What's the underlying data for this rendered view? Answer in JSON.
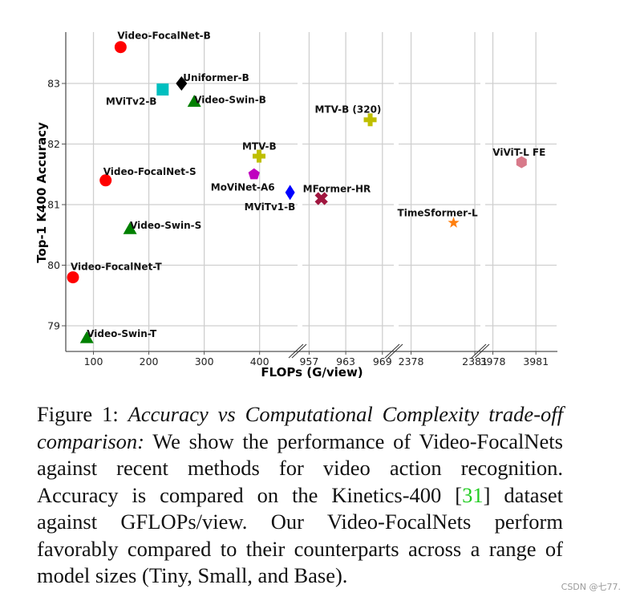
{
  "chart_data": {
    "type": "scatter",
    "title": "",
    "xlabel": "FLOPs (G/view)",
    "ylabel": "Top-1 K400 Accuracy",
    "ylim": [
      78.6,
      83.9
    ],
    "yticks": [
      79,
      80,
      81,
      82,
      83
    ],
    "grid": true,
    "broken_x_axis": true,
    "x_segments": [
      {
        "range": [
          50,
          470
        ],
        "ticks": [
          100,
          200,
          300,
          400
        ]
      },
      {
        "range": [
          955.5,
          971
        ],
        "ticks": [
          957,
          963,
          969
        ]
      },
      {
        "range": [
          2377.3,
          2381.3
        ],
        "ticks": [
          2378,
          2381
        ]
      },
      {
        "range": [
          3977.3,
          3982.5
        ],
        "ticks": [
          3978,
          3981
        ]
      }
    ],
    "points": [
      {
        "name": "Video-FocalNet-B",
        "x": 149,
        "y": 83.6,
        "marker": "circle",
        "color": "#ff0000"
      },
      {
        "name": "MViTv2-B",
        "x": 225,
        "y": 82.9,
        "marker": "square",
        "color": "#00bfbf"
      },
      {
        "name": "Uniformer-B",
        "x": 259,
        "y": 83.0,
        "marker": "diamond",
        "color": "#000000"
      },
      {
        "name": "Video-Swin-B",
        "x": 282,
        "y": 82.7,
        "marker": "triangle",
        "color": "#008000"
      },
      {
        "name": "MTV-B",
        "x": 399,
        "y": 81.8,
        "marker": "plus",
        "color": "#bfbf00"
      },
      {
        "name": "MoViNet-A6",
        "x": 390,
        "y": 81.5,
        "marker": "pentagon",
        "color": "#bf00bf"
      },
      {
        "name": "MViTv1-B",
        "x": 455,
        "y": 81.2,
        "marker": "thin_diamond",
        "color": "#0000ff"
      },
      {
        "name": "MFormer-HR",
        "x": 959,
        "y": 81.1,
        "marker": "x",
        "color": "#a0163f"
      },
      {
        "name": "MTV-B (320)",
        "x": 967,
        "y": 82.4,
        "marker": "plus",
        "color": "#bfbf00"
      },
      {
        "name": "TimeSformer-L",
        "x": 2380,
        "y": 80.7,
        "marker": "star",
        "color": "#ff7f0e"
      },
      {
        "name": "ViViT-L FE",
        "x": 3980,
        "y": 81.7,
        "marker": "hexagon",
        "color": "#d87a8a"
      },
      {
        "name": "Video-FocalNet-S",
        "x": 122,
        "y": 81.4,
        "marker": "circle",
        "color": "#ff0000"
      },
      {
        "name": "Video-Swin-S",
        "x": 166,
        "y": 80.6,
        "marker": "triangle",
        "color": "#008000"
      },
      {
        "name": "Video-FocalNet-T",
        "x": 63,
        "y": 79.8,
        "marker": "circle",
        "color": "#ff0000"
      },
      {
        "name": "Video-Swin-T",
        "x": 88,
        "y": 78.8,
        "marker": "triangle",
        "color": "#008000"
      }
    ]
  },
  "figure": {
    "x_axis_title": "FLOPs (G/view)",
    "y_axis_title": "Top-1 K400 Accuracy"
  },
  "caption": {
    "label": "Figure 1: ",
    "italic_title": "Accuracy vs Computational Complexity trade-off comparison:",
    "text_1": " We show the performance of Video-FocalNets against recent methods for video action recognition. Accuracy is compared on the Kinetics-400 [",
    "citation": "31",
    "text_2": "] dataset against GFLOPs/view.  Our Video-FocalNets perform favorably compared to their counterparts across a range of model sizes (Tiny, Small, and Base)."
  },
  "watermark": "CSDN @七77."
}
